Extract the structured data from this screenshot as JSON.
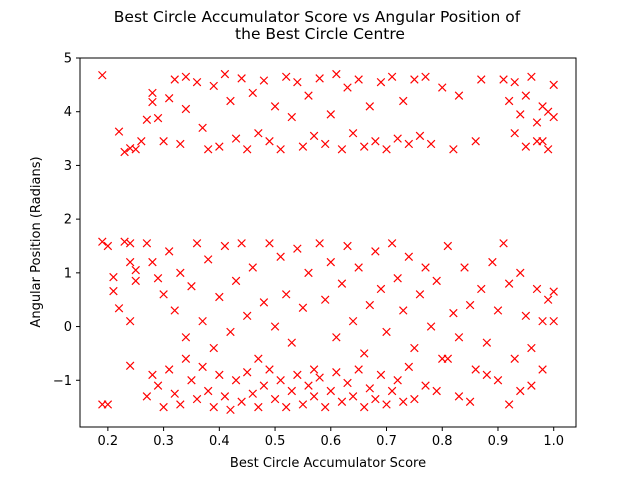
{
  "chart_data": {
    "type": "scatter",
    "title_lines": [
      "Best Circle Accumulator Score vs Angular Position of",
      "the Best Circle Centre"
    ],
    "xlabel": "Best Circle Accumulator Score",
    "ylabel": "Angular Position (Radians)",
    "xlim": [
      0.15,
      1.04
    ],
    "ylim": [
      -1.87,
      5.0
    ],
    "x_ticks": [
      0.2,
      0.3,
      0.4,
      0.5,
      0.6,
      0.7,
      0.8,
      0.9,
      1.0
    ],
    "x_tick_labels": [
      "0.2",
      "0.3",
      "0.4",
      "0.5",
      "0.6",
      "0.7",
      "0.8",
      "0.9",
      "1.0"
    ],
    "y_ticks": [
      -1,
      0,
      1,
      2,
      3,
      4,
      5
    ],
    "y_tick_labels": [
      "−1",
      "0",
      "1",
      "2",
      "3",
      "4",
      "5"
    ],
    "grid": false,
    "marker": "x",
    "color": "#ff0000",
    "series": [
      {
        "values": [
          [
            0.19,
            4.68
          ],
          [
            0.19,
            1.58
          ],
          [
            0.2,
            1.5
          ],
          [
            0.19,
            -1.45
          ],
          [
            0.2,
            -1.45
          ],
          [
            0.21,
            0.92
          ],
          [
            0.21,
            0.66
          ],
          [
            0.22,
            0.34
          ],
          [
            0.22,
            3.63
          ],
          [
            0.23,
            3.25
          ],
          [
            0.24,
            3.32
          ],
          [
            0.23,
            1.58
          ],
          [
            0.24,
            1.55
          ],
          [
            0.24,
            1.2
          ],
          [
            0.24,
            0.1
          ],
          [
            0.24,
            -0.73
          ],
          [
            0.25,
            3.3
          ],
          [
            0.25,
            1.05
          ],
          [
            0.25,
            0.85
          ],
          [
            0.26,
            3.45
          ],
          [
            0.27,
            3.85
          ],
          [
            0.28,
            4.35
          ],
          [
            0.28,
            4.18
          ],
          [
            0.29,
            3.88
          ],
          [
            0.3,
            3.45
          ],
          [
            0.31,
            4.25
          ],
          [
            0.32,
            4.6
          ],
          [
            0.33,
            3.4
          ],
          [
            0.34,
            4.05
          ],
          [
            0.34,
            4.65
          ],
          [
            0.36,
            4.55
          ],
          [
            0.37,
            3.7
          ],
          [
            0.38,
            3.3
          ],
          [
            0.39,
            4.48
          ],
          [
            0.4,
            3.35
          ],
          [
            0.41,
            4.7
          ],
          [
            0.42,
            4.2
          ],
          [
            0.43,
            3.5
          ],
          [
            0.44,
            4.62
          ],
          [
            0.45,
            3.3
          ],
          [
            0.46,
            4.35
          ],
          [
            0.47,
            3.6
          ],
          [
            0.48,
            4.58
          ],
          [
            0.49,
            3.45
          ],
          [
            0.5,
            4.1
          ],
          [
            0.51,
            3.3
          ],
          [
            0.52,
            4.65
          ],
          [
            0.53,
            3.9
          ],
          [
            0.54,
            4.55
          ],
          [
            0.55,
            3.35
          ],
          [
            0.56,
            4.3
          ],
          [
            0.57,
            3.55
          ],
          [
            0.58,
            4.62
          ],
          [
            0.59,
            3.4
          ],
          [
            0.6,
            3.95
          ],
          [
            0.61,
            4.7
          ],
          [
            0.62,
            3.3
          ],
          [
            0.63,
            4.45
          ],
          [
            0.64,
            3.6
          ],
          [
            0.65,
            4.6
          ],
          [
            0.66,
            3.35
          ],
          [
            0.67,
            4.1
          ],
          [
            0.68,
            3.45
          ],
          [
            0.69,
            4.55
          ],
          [
            0.7,
            3.3
          ],
          [
            0.71,
            4.65
          ],
          [
            0.72,
            3.5
          ],
          [
            0.73,
            4.2
          ],
          [
            0.74,
            3.4
          ],
          [
            0.75,
            4.6
          ],
          [
            0.76,
            3.55
          ],
          [
            0.77,
            4.65
          ],
          [
            0.78,
            3.4
          ],
          [
            0.8,
            4.45
          ],
          [
            0.82,
            3.3
          ],
          [
            0.83,
            4.3
          ],
          [
            0.86,
            3.45
          ],
          [
            0.87,
            4.6
          ],
          [
            0.91,
            4.6
          ],
          [
            0.92,
            4.2
          ],
          [
            0.93,
            4.55
          ],
          [
            0.94,
            3.95
          ],
          [
            0.95,
            4.3
          ],
          [
            0.95,
            3.35
          ],
          [
            0.96,
            4.65
          ],
          [
            0.97,
            3.8
          ],
          [
            0.98,
            4.1
          ],
          [
            0.98,
            3.45
          ],
          [
            0.99,
            3.3
          ],
          [
            1.0,
            4.5
          ],
          [
            1.0,
            3.9
          ],
          [
            0.99,
            4.0
          ],
          [
            0.93,
            3.6
          ],
          [
            0.97,
            3.45
          ],
          [
            0.27,
            1.55
          ],
          [
            0.28,
            1.2
          ],
          [
            0.29,
            0.9
          ],
          [
            0.3,
            0.6
          ],
          [
            0.31,
            1.4
          ],
          [
            0.32,
            0.3
          ],
          [
            0.33,
            1.0
          ],
          [
            0.34,
            -0.2
          ],
          [
            0.35,
            0.75
          ],
          [
            0.36,
            1.55
          ],
          [
            0.37,
            0.1
          ],
          [
            0.38,
            1.25
          ],
          [
            0.39,
            -0.4
          ],
          [
            0.4,
            0.55
          ],
          [
            0.41,
            1.5
          ],
          [
            0.42,
            -0.1
          ],
          [
            0.43,
            0.85
          ],
          [
            0.44,
            1.55
          ],
          [
            0.45,
            0.2
          ],
          [
            0.46,
            1.1
          ],
          [
            0.47,
            -0.6
          ],
          [
            0.48,
            0.45
          ],
          [
            0.49,
            1.55
          ],
          [
            0.5,
            0.0
          ],
          [
            0.51,
            1.3
          ],
          [
            0.52,
            0.6
          ],
          [
            0.53,
            -0.3
          ],
          [
            0.54,
            1.45
          ],
          [
            0.55,
            0.35
          ],
          [
            0.56,
            1.0
          ],
          [
            0.57,
            -0.8
          ],
          [
            0.58,
            1.55
          ],
          [
            0.59,
            0.5
          ],
          [
            0.6,
            1.2
          ],
          [
            0.61,
            -0.2
          ],
          [
            0.62,
            0.8
          ],
          [
            0.63,
            1.5
          ],
          [
            0.64,
            0.1
          ],
          [
            0.65,
            1.1
          ],
          [
            0.66,
            -0.5
          ],
          [
            0.67,
            0.4
          ],
          [
            0.68,
            1.4
          ],
          [
            0.69,
            0.7
          ],
          [
            0.7,
            -0.1
          ],
          [
            0.71,
            1.55
          ],
          [
            0.72,
            0.9
          ],
          [
            0.73,
            0.3
          ],
          [
            0.74,
            1.3
          ],
          [
            0.75,
            -0.4
          ],
          [
            0.76,
            0.6
          ],
          [
            0.77,
            1.1
          ],
          [
            0.78,
            0.0
          ],
          [
            0.79,
            0.85
          ],
          [
            0.8,
            -0.6
          ],
          [
            0.81,
            1.5
          ],
          [
            0.82,
            0.25
          ],
          [
            0.83,
            -0.2
          ],
          [
            0.84,
            1.1
          ],
          [
            0.85,
            0.4
          ],
          [
            0.86,
            -0.8
          ],
          [
            0.87,
            0.7
          ],
          [
            0.88,
            -0.3
          ],
          [
            0.89,
            1.2
          ],
          [
            0.9,
            0.3
          ],
          [
            0.91,
            1.55
          ],
          [
            0.92,
            0.8
          ],
          [
            0.93,
            -0.6
          ],
          [
            0.94,
            1.0
          ],
          [
            0.95,
            0.2
          ],
          [
            0.96,
            -0.4
          ],
          [
            0.97,
            0.7
          ],
          [
            0.98,
            0.1
          ],
          [
            0.99,
            0.5
          ],
          [
            1.0,
            0.65
          ],
          [
            1.0,
            0.1
          ],
          [
            0.27,
            -1.3
          ],
          [
            0.28,
            -0.9
          ],
          [
            0.29,
            -1.1
          ],
          [
            0.3,
            -1.5
          ],
          [
            0.31,
            -0.8
          ],
          [
            0.32,
            -1.25
          ],
          [
            0.33,
            -1.45
          ],
          [
            0.34,
            -0.6
          ],
          [
            0.35,
            -1.0
          ],
          [
            0.36,
            -1.35
          ],
          [
            0.37,
            -0.75
          ],
          [
            0.38,
            -1.2
          ],
          [
            0.39,
            -1.5
          ],
          [
            0.4,
            -0.9
          ],
          [
            0.41,
            -1.3
          ],
          [
            0.42,
            -1.55
          ],
          [
            0.43,
            -1.0
          ],
          [
            0.44,
            -1.4
          ],
          [
            0.45,
            -0.85
          ],
          [
            0.46,
            -1.25
          ],
          [
            0.47,
            -1.5
          ],
          [
            0.48,
            -1.1
          ],
          [
            0.49,
            -0.8
          ],
          [
            0.5,
            -1.35
          ],
          [
            0.51,
            -1.0
          ],
          [
            0.52,
            -1.5
          ],
          [
            0.53,
            -1.2
          ],
          [
            0.54,
            -0.9
          ],
          [
            0.55,
            -1.45
          ],
          [
            0.56,
            -1.1
          ],
          [
            0.57,
            -1.3
          ],
          [
            0.58,
            -0.95
          ],
          [
            0.59,
            -1.5
          ],
          [
            0.6,
            -1.2
          ],
          [
            0.61,
            -0.85
          ],
          [
            0.62,
            -1.4
          ],
          [
            0.63,
            -1.05
          ],
          [
            0.64,
            -1.3
          ],
          [
            0.65,
            -0.8
          ],
          [
            0.66,
            -1.5
          ],
          [
            0.67,
            -1.15
          ],
          [
            0.68,
            -1.35
          ],
          [
            0.69,
            -0.9
          ],
          [
            0.7,
            -1.45
          ],
          [
            0.71,
            -1.2
          ],
          [
            0.72,
            -1.0
          ],
          [
            0.73,
            -1.4
          ],
          [
            0.74,
            -0.75
          ],
          [
            0.75,
            -1.35
          ],
          [
            0.77,
            -1.1
          ],
          [
            0.79,
            -1.2
          ],
          [
            0.81,
            -0.6
          ],
          [
            0.83,
            -1.3
          ],
          [
            0.85,
            -1.4
          ],
          [
            0.88,
            -0.9
          ],
          [
            0.9,
            -1.0
          ],
          [
            0.92,
            -1.45
          ],
          [
            0.94,
            -1.2
          ],
          [
            0.96,
            -1.1
          ],
          [
            0.98,
            -0.8
          ]
        ]
      }
    ]
  }
}
